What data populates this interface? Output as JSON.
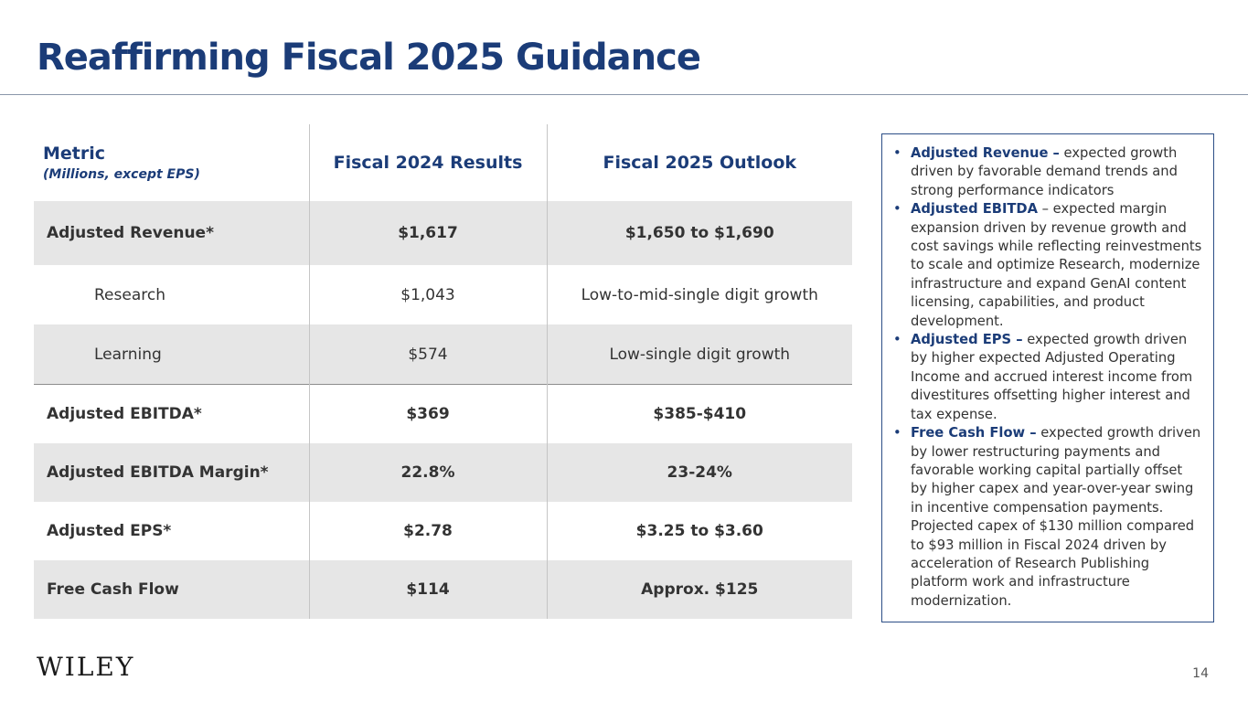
{
  "title": "Reaffirming Fiscal 2025 Guidance",
  "table": {
    "header": {
      "metric": "Metric",
      "metric_note": "(Millions, except EPS)",
      "col_2024": "Fiscal 2024 Results",
      "col_2025": "Fiscal 2025 Outlook"
    },
    "rows": [
      {
        "label": "Adjusted Revenue*",
        "fy2024": "$1,617",
        "fy2025": "$1,650 to $1,690"
      },
      {
        "label": "Research",
        "fy2024": "$1,043",
        "fy2025": "Low-to-mid-single digit growth"
      },
      {
        "label": "Learning",
        "fy2024": "$574",
        "fy2025": "Low-single digit growth"
      },
      {
        "label": "Adjusted EBITDA*",
        "fy2024": "$369",
        "fy2025": "$385-$410"
      },
      {
        "label": "Adjusted EBITDA Margin*",
        "fy2024": "22.8%",
        "fy2025": "23-24%"
      },
      {
        "label": "Adjusted EPS*",
        "fy2024": "$2.78",
        "fy2025": "$3.25 to $3.60"
      },
      {
        "label": "Free Cash Flow",
        "fy2024": "$114",
        "fy2025": "Approx. $125"
      }
    ]
  },
  "notes": [
    {
      "term": "Adjusted Revenue –",
      "text": " expected growth driven by favorable demand trends and strong performance indicators"
    },
    {
      "term": "Adjusted EBITDA",
      "text": " – expected margin expansion driven by revenue growth and cost savings while reflecting reinvestments to scale and optimize Research, modernize infrastructure and expand GenAI content licensing, capabilities, and product development."
    },
    {
      "term": "Adjusted EPS –",
      "text": " expected growth driven by higher expected Adjusted Operating Income and accrued interest income from divestitures offsetting higher interest and tax expense."
    },
    {
      "term": "Free Cash Flow –",
      "text": " expected growth driven by lower restructuring payments and favorable working capital partially offset by higher capex and year-over-year swing in incentive compensation payments. Projected capex of $130 million compared to $93 million in Fiscal 2024 driven by acceleration of Research Publishing platform work and infrastructure modernization."
    }
  ],
  "bullet_char": "•",
  "logo_text": "WILEY",
  "page_number": "14"
}
